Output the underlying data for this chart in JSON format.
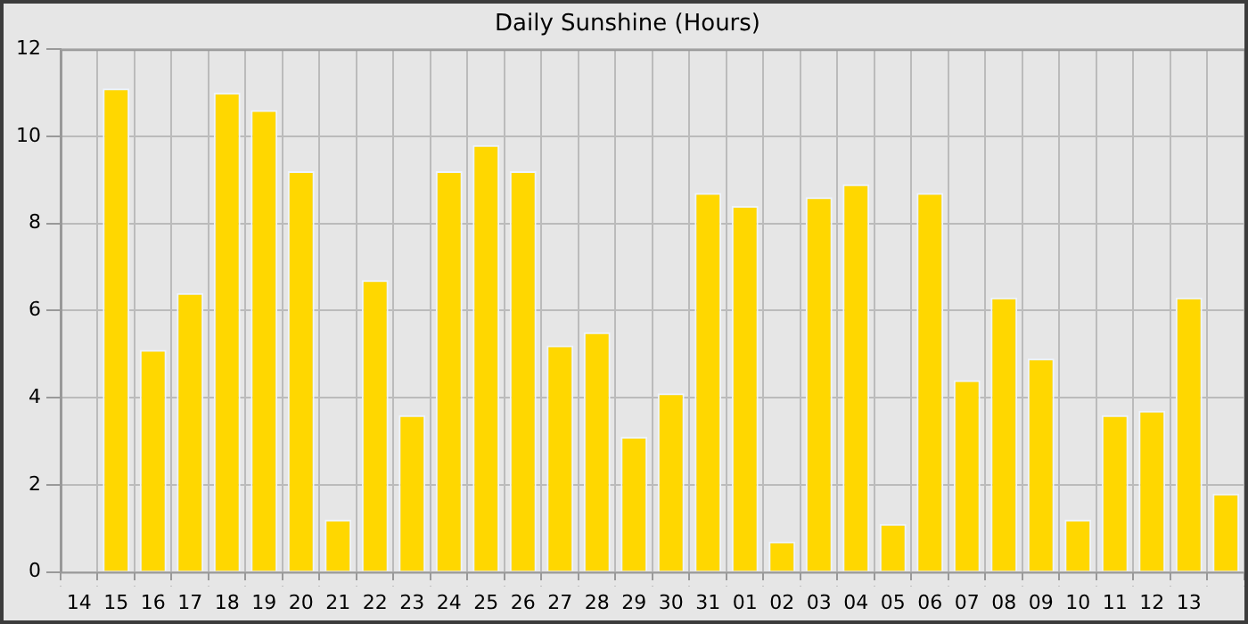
{
  "chart_data": {
    "type": "bar",
    "title": "Daily Sunshine (Hours)",
    "categories": [
      "14",
      "15",
      "16",
      "17",
      "18",
      "19",
      "20",
      "21",
      "22",
      "23",
      "24",
      "25",
      "26",
      "27",
      "28",
      "29",
      "30",
      "31",
      "01",
      "02",
      "03",
      "04",
      "05",
      "06",
      "07",
      "08",
      "09",
      "10",
      "11",
      "12",
      "13",
      null
    ],
    "values": [
      null,
      11.1,
      5.1,
      6.4,
      11.0,
      10.6,
      9.2,
      1.2,
      6.7,
      3.6,
      9.2,
      9.8,
      9.2,
      5.2,
      5.5,
      3.1,
      4.1,
      8.7,
      8.4,
      0.7,
      8.6,
      8.9,
      1.1,
      8.7,
      4.4,
      6.3,
      4.9,
      1.2,
      3.6,
      3.7,
      6.3,
      1.8
    ],
    "color": "#ffd700",
    "ylim": [
      0,
      12
    ],
    "yticks": [
      0,
      2,
      4,
      6,
      8,
      10,
      12
    ],
    "grid": true
  }
}
